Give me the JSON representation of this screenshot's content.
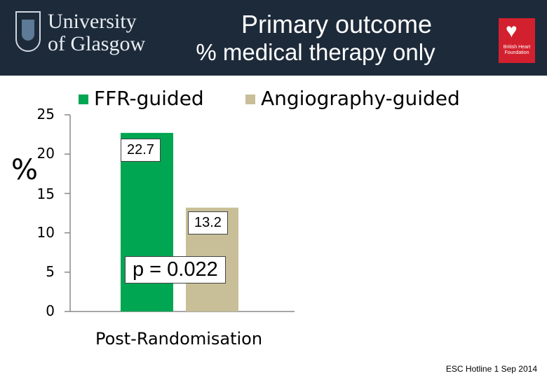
{
  "header": {
    "title": "Primary outcome",
    "subtitle": "% medical therapy only",
    "logo_line1": "University",
    "logo_line2": "of Glasgow",
    "partner_logo_text": "British Heart Foundation"
  },
  "footer": "ESC Hotline 1 Sep 2014",
  "colors": {
    "header_bg": "#1d2a3a",
    "ffr": "#00a651",
    "angio": "#c8bf98"
  },
  "chart_data": {
    "type": "bar",
    "title": "",
    "xlabel": "Post-Randomisation",
    "ylabel": "%",
    "ylim": [
      0,
      25
    ],
    "yticks": [
      0,
      5,
      10,
      15,
      20,
      25
    ],
    "categories": [
      "Post-Randomisation"
    ],
    "series": [
      {
        "name": "FFR-guided",
        "values": [
          22.7
        ],
        "label": "22.7"
      },
      {
        "name": "Angiography-guided",
        "values": [
          13.2
        ],
        "label": "13.2"
      }
    ],
    "legend": "top",
    "grid": false,
    "annotation": "p = 0.022"
  }
}
